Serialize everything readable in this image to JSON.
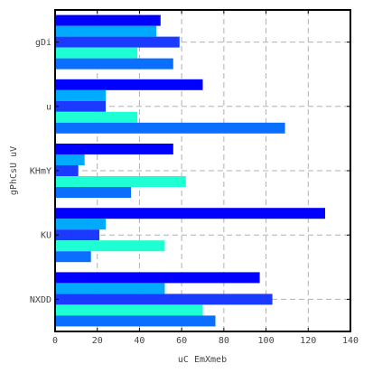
{
  "chart_data": {
    "type": "bar",
    "orientation": "horizontal",
    "title": "",
    "xlabel": "uC EmXmeb",
    "ylabel": "gPhCsU uV",
    "xlim": [
      0,
      140
    ],
    "xticks": [
      "0",
      "20",
      "40",
      "60",
      "80",
      "100",
      "120",
      "140"
    ],
    "categories": [
      "gDi",
      "u",
      "KHmY",
      "KU",
      "NXDD"
    ],
    "series_colors": [
      "#0000ff",
      "#00aaff",
      "#1a3bff",
      "#1effd4",
      "#0a6fff"
    ],
    "series": [
      {
        "values": [
          50,
          70,
          56,
          128,
          97
        ]
      },
      {
        "values": [
          48,
          24,
          14,
          24,
          52
        ]
      },
      {
        "values": [
          59,
          24,
          11,
          21,
          103
        ]
      },
      {
        "values": [
          39,
          39,
          62,
          52,
          70
        ]
      },
      {
        "values": [
          56,
          109,
          36,
          17,
          76
        ]
      }
    ],
    "grid": true,
    "legend": "none"
  }
}
